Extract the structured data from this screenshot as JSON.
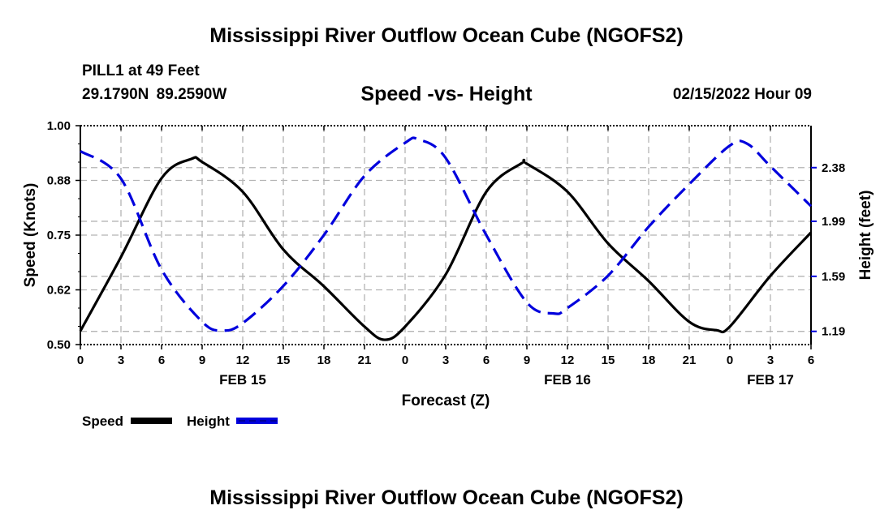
{
  "header": {
    "title": "Mississippi River Outflow Ocean Cube (NGOFS2)",
    "station": "PILL1 at 49 Feet",
    "coords": "29.1790N  89.2590W",
    "subtitle": "Speed -vs- Height",
    "datetime": "02/15/2022 Hour 09"
  },
  "footer": {
    "title": "Mississippi River Outflow Ocean Cube (NGOFS2)"
  },
  "chart_data": {
    "type": "line",
    "title": "Speed -vs- Height",
    "xlabel": "Forecast (Z)",
    "ylabel": "Speed (Knots)",
    "y2label": "Height (feet)",
    "xlim": [
      0,
      54
    ],
    "ylim": [
      0.5,
      1.0
    ],
    "y2lim": [
      1.094,
      2.685
    ],
    "x_ticks": [
      0,
      3,
      6,
      9,
      12,
      15,
      18,
      21,
      24,
      27,
      30,
      33,
      36,
      39,
      42,
      45,
      48,
      51,
      54
    ],
    "x_tick_labels": [
      "0",
      "3",
      "6",
      "9",
      "12",
      "15",
      "18",
      "21",
      "0",
      "3",
      "6",
      "9",
      "12",
      "15",
      "18",
      "21",
      "0",
      "3",
      "6"
    ],
    "date_labels": [
      {
        "x": 12,
        "label": "FEB 15"
      },
      {
        "x": 36,
        "label": "FEB 16"
      },
      {
        "x": 51,
        "label": "FEB 17"
      }
    ],
    "y_ticks": [
      1.0,
      0.875,
      0.75,
      0.625,
      0.5
    ],
    "y_tick_labels": [
      "1.00",
      "0.88",
      "0.75",
      "0.62",
      "0.50"
    ],
    "y2_ticks": [
      2.38,
      1.99,
      1.59,
      1.19
    ],
    "y2_tick_labels": [
      "2.38",
      "1.99",
      "1.59",
      "1.19"
    ],
    "grid": true,
    "legend_position": "bottom-left",
    "series": [
      {
        "name": "Speed",
        "axis": "left",
        "color": "#000000",
        "style": "solid",
        "x": [
          0,
          3,
          6,
          8.2,
          9,
          12,
          15,
          18,
          21,
          22.5,
          24,
          27,
          30,
          32.6,
          33,
          36,
          39,
          42,
          45,
          47,
          48,
          51,
          54
        ],
        "values": [
          0.531,
          0.7,
          0.88,
          0.924,
          0.917,
          0.849,
          0.717,
          0.633,
          0.541,
          0.511,
          0.541,
          0.66,
          0.849,
          0.914,
          0.913,
          0.849,
          0.731,
          0.645,
          0.552,
          0.533,
          0.541,
          0.657,
          0.756
        ]
      },
      {
        "name": "Height",
        "axis": "right",
        "color": "#0000dd",
        "style": "dashed",
        "x": [
          0,
          3,
          6,
          9,
          10.5,
          12,
          15,
          18,
          21,
          24,
          25,
          27,
          30,
          33,
          35,
          36,
          39,
          42,
          45,
          48,
          49.3,
          51,
          54
        ],
        "values": [
          2.5,
          2.3,
          1.64,
          1.26,
          1.196,
          1.25,
          1.52,
          1.89,
          2.32,
          2.56,
          2.585,
          2.45,
          1.89,
          1.4,
          1.32,
          1.36,
          1.595,
          1.95,
          2.26,
          2.54,
          2.553,
          2.39,
          2.1
        ]
      }
    ]
  }
}
